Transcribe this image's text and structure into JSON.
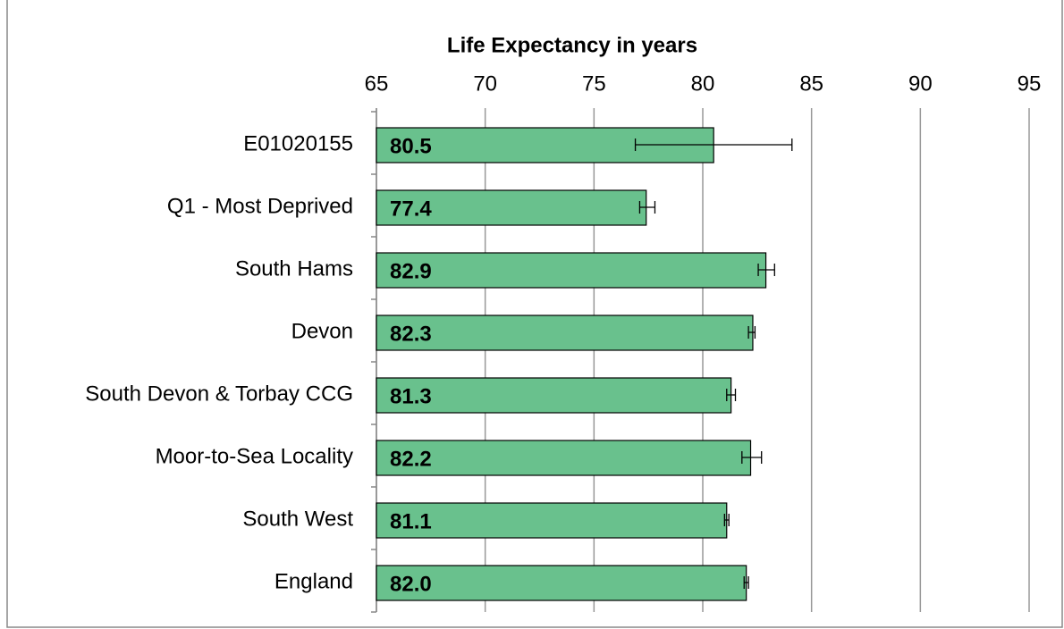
{
  "chart_data": {
    "type": "bar",
    "orientation": "horizontal",
    "x_axis_title": "Life Expectancy in years",
    "categories": [
      "E01020155",
      "Q1 - Most Deprived",
      "South Hams",
      "Devon",
      "South Devon & Torbay CCG",
      "Moor-to-Sea Locality",
      "South West",
      "England"
    ],
    "values": [
      80.5,
      77.4,
      82.9,
      82.3,
      81.3,
      82.2,
      81.1,
      82.0
    ],
    "value_labels": [
      "80.5",
      "77.4",
      "82.9",
      "82.3",
      "81.3",
      "82.2",
      "81.1",
      "82.0"
    ],
    "ci_low": [
      76.9,
      77.1,
      82.55,
      82.1,
      81.1,
      81.8,
      81.0,
      81.9
    ],
    "ci_high": [
      84.1,
      77.8,
      83.3,
      82.4,
      81.5,
      82.7,
      81.2,
      82.1
    ],
    "color": "#69c18d",
    "xlim": [
      65,
      95
    ],
    "xticks": [
      65,
      70,
      75,
      80,
      85,
      90,
      95
    ],
    "grid": true
  }
}
